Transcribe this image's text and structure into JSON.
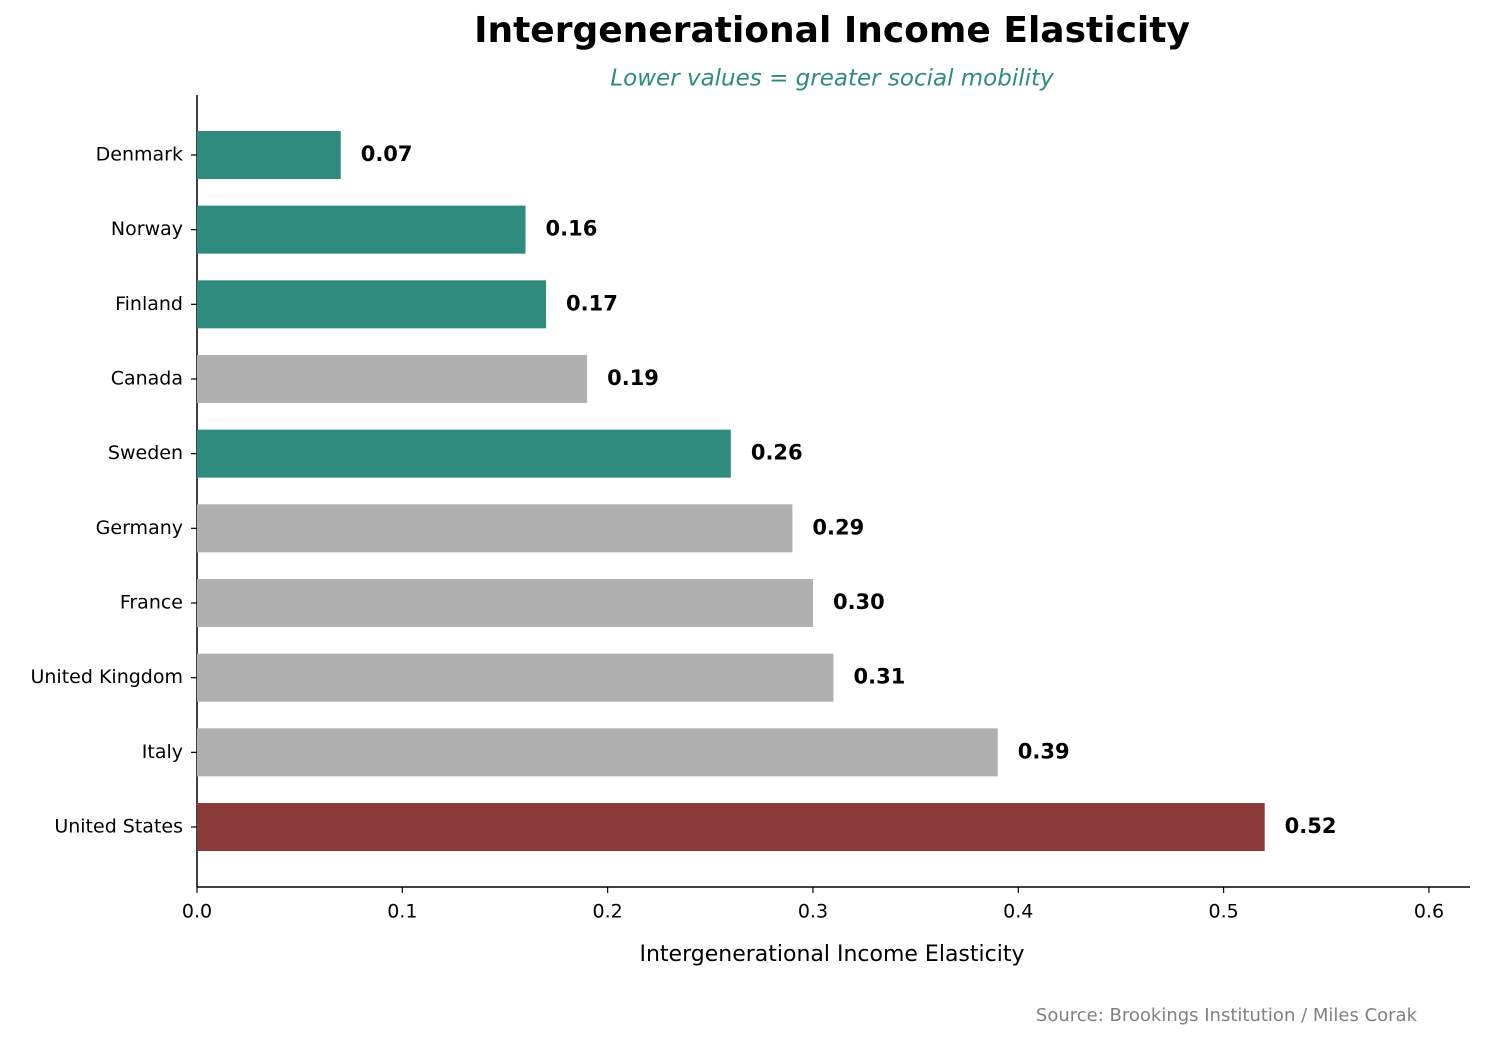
{
  "chart_data": {
    "type": "barh",
    "title": "Intergenerational Income Elasticity",
    "subtitle": "Lower values = greater social mobility",
    "xlabel": "Intergenerational Income Elasticity",
    "source": "Source: Brookings Institution / Miles Corak",
    "categories": [
      "Denmark",
      "Norway",
      "Finland",
      "Canada",
      "Sweden",
      "Germany",
      "France",
      "United Kingdom",
      "Italy",
      "United States"
    ],
    "values": [
      0.07,
      0.16,
      0.17,
      0.19,
      0.26,
      0.29,
      0.3,
      0.31,
      0.39,
      0.52
    ],
    "value_labels": [
      "0.07",
      "0.16",
      "0.17",
      "0.19",
      "0.26",
      "0.29",
      "0.30",
      "0.31",
      "0.39",
      "0.52"
    ],
    "colors": [
      "#2e8b7e",
      "#2e8b7e",
      "#2e8b7e",
      "#b0b0b0",
      "#2e8b7e",
      "#b0b0b0",
      "#b0b0b0",
      "#b0b0b0",
      "#b0b0b0",
      "#8b3a3a"
    ],
    "xlim": [
      0,
      0.62
    ],
    "xticks": [
      {
        "value": 0,
        "label": "0.0"
      },
      0.1,
      0.2,
      0.3,
      0.4,
      0.5,
      0.6
    ]
  }
}
